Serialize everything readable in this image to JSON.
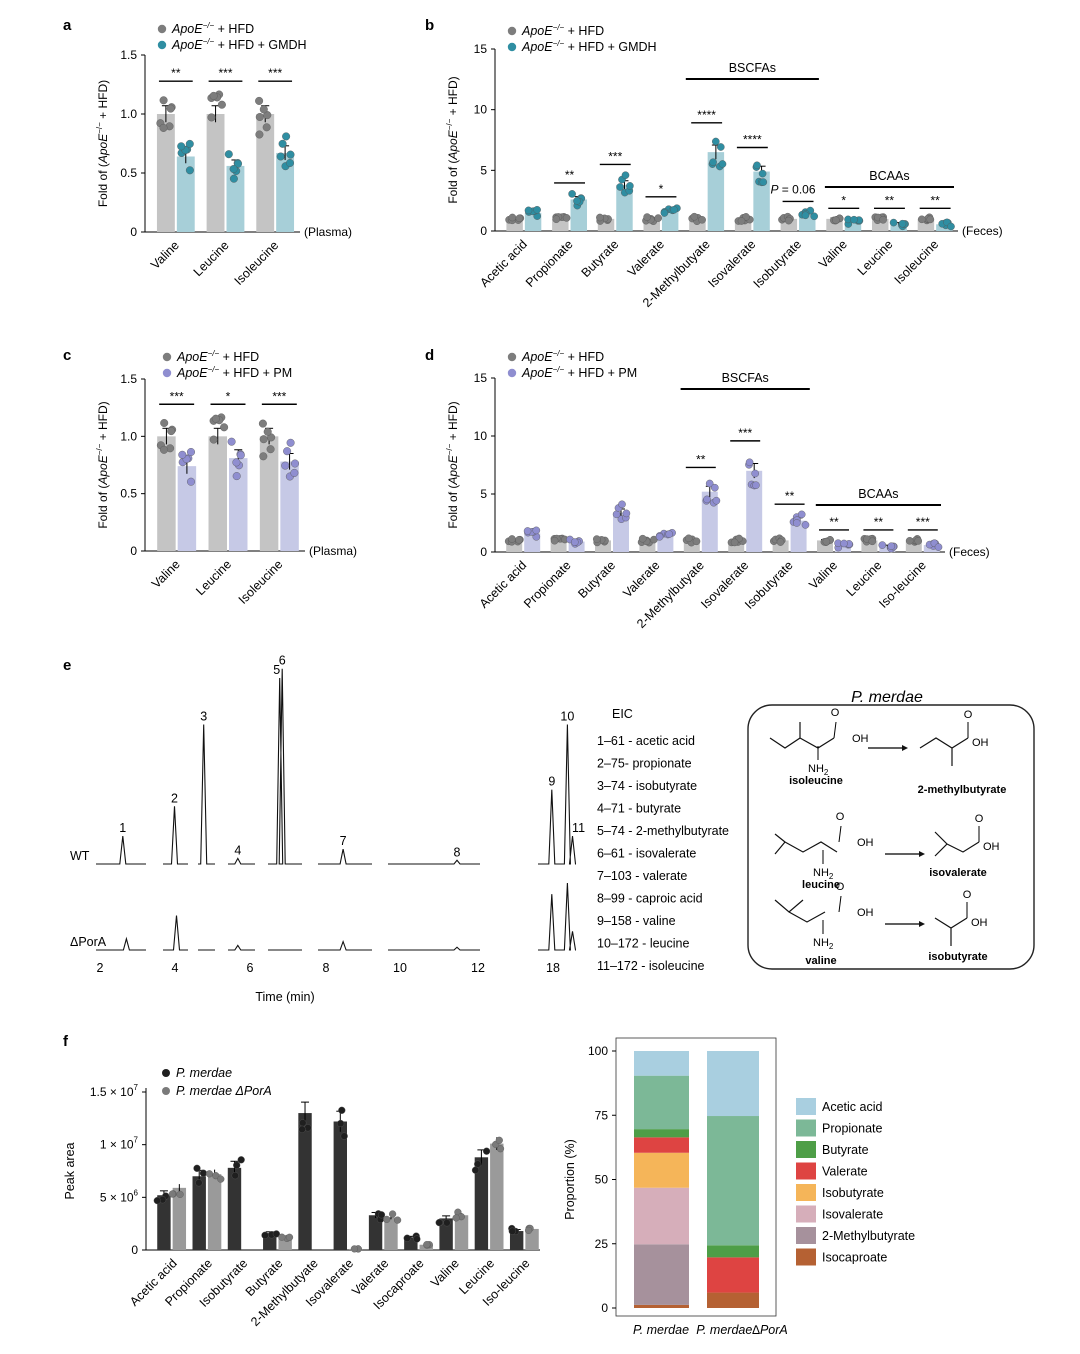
{
  "panel_labels": [
    "a",
    "b",
    "c",
    "d",
    "e",
    "f"
  ],
  "colors": {
    "grey_bar": "#c4c4c4",
    "grey_dot": "#7d7d7d",
    "teal_bar": "#a7cfd8",
    "teal_dot": "#2f8ea2",
    "purple_bar": "#c6c9e6",
    "purple_dot": "#8f8ed0",
    "light_dot": "#b8b8b8",
    "dark_bar": "#333333",
    "dark_dot": "#1f1f1f",
    "mid_bar": "#9a9a9a",
    "mid_dot": "#7a7a7a"
  },
  "chart_data": [
    {
      "id": "a",
      "type": "bar",
      "title": "",
      "legend": [
        "ApoE−/− + HFD",
        "ApoE−/− + HFD + GMDH"
      ],
      "xlabel": "",
      "ylabel": "Fold of (ApoE−/− + HFD)",
      "ylim": [
        0,
        1.5
      ],
      "yticks": [
        "0",
        "0.5",
        "1.0",
        "1.5"
      ],
      "categories": [
        "Valine",
        "Leucine",
        "Isoleucine"
      ],
      "note": "(Plasma)",
      "series": [
        {
          "name": "ApoE−/− + HFD",
          "values": [
            1.0,
            1.0,
            1.0
          ]
        },
        {
          "name": "ApoE−/− + HFD + GMDH",
          "values": [
            0.64,
            0.56,
            0.67
          ]
        }
      ],
      "annotations": [
        "**",
        "***",
        "***"
      ]
    },
    {
      "id": "b",
      "type": "bar",
      "title": "",
      "legend": [
        "ApoE−/− + HFD",
        "ApoE−/− + HFD + GMDH"
      ],
      "xlabel": "",
      "ylabel": "Fold of (ApoE−/− + HFD)",
      "ylim": [
        0,
        15
      ],
      "yticks": [
        "0",
        "5",
        "10",
        "15"
      ],
      "categories": [
        "Acetic acid",
        "Propionate",
        "Butyrate",
        "Valerate",
        "2-Methylbutyate",
        "Isovalerate",
        "Isobutyrate",
        "Valine",
        "Leucine",
        "Isoleucine"
      ],
      "note": "(Feces)",
      "series": [
        {
          "name": "ApoE−/− + HFD",
          "values": [
            1.0,
            1.0,
            1.0,
            1.0,
            1.0,
            1.0,
            1.0,
            1.0,
            1.0,
            1.0
          ]
        },
        {
          "name": "ApoE−/− + HFD + GMDH",
          "values": [
            1.5,
            2.6,
            3.8,
            1.7,
            6.5,
            4.9,
            1.4,
            0.75,
            0.6,
            0.55
          ]
        }
      ],
      "annotations": [
        "",
        "**",
        "***",
        "*",
        "****",
        "****",
        "P = 0.06",
        "*",
        "**",
        "**"
      ],
      "groups": [
        "BSCFAs",
        "BCAAs"
      ]
    },
    {
      "id": "c",
      "type": "bar",
      "title": "",
      "legend": [
        "ApoE−/− + HFD",
        "ApoE−/− + HFD + PM"
      ],
      "xlabel": "",
      "ylabel": "Fold of (ApoE−/− + HFD)",
      "ylim": [
        0,
        1.5
      ],
      "yticks": [
        "0",
        "0.5",
        "1.0",
        "1.5"
      ],
      "categories": [
        "Valine",
        "Leucine",
        "Isoleucine"
      ],
      "note": "(Plasma)",
      "series": [
        {
          "name": "ApoE−/− + HFD",
          "values": [
            1.0,
            1.0,
            1.0
          ]
        },
        {
          "name": "ApoE−/− + HFD + PM",
          "values": [
            0.74,
            0.81,
            0.78
          ]
        }
      ],
      "annotations": [
        "***",
        "*",
        "***"
      ]
    },
    {
      "id": "d",
      "type": "bar",
      "title": "",
      "legend": [
        "ApoE−/− + HFD",
        "ApoE−/− + HFD + PM"
      ],
      "xlabel": "",
      "ylabel": "Fold of (ApoE−/− + HFD)",
      "ylim": [
        0,
        15
      ],
      "yticks": [
        "0",
        "5",
        "10",
        "15"
      ],
      "categories": [
        "Acetic acid",
        "Propionate",
        "Butyrate",
        "Valerate",
        "2-Methylbutyate",
        "Isovalerate",
        "Isobutyrate",
        "Valine",
        "Leucine",
        "Iso-leucine"
      ],
      "note": "(Feces)",
      "series": [
        {
          "name": "ApoE−/− + HFD",
          "values": [
            1.0,
            1.0,
            1.0,
            1.0,
            1.0,
            1.0,
            1.0,
            1.0,
            1.0,
            1.0
          ]
        },
        {
          "name": "ApoE−/− + HFD + PM",
          "values": [
            1.6,
            0.9,
            3.4,
            1.5,
            5.2,
            7.0,
            2.7,
            0.55,
            0.5,
            0.6
          ]
        }
      ],
      "annotations": [
        "",
        "",
        "",
        "",
        "**",
        "***",
        "**",
        "**",
        "**",
        "***"
      ],
      "groups": [
        "BSCFAs",
        "BCAAs"
      ]
    },
    {
      "id": "e",
      "type": "line",
      "title": "",
      "xlabel": "Time (min)",
      "xticks": [
        "2",
        "4",
        "6",
        "8",
        "10",
        "12",
        "18"
      ],
      "traces": [
        "WT",
        "ΔPorA"
      ],
      "series": [
        {
          "name": "WT",
          "peaks": [
            {
              "label": "1",
              "x": 2.75,
              "height": 0.15
            },
            {
              "label": "2",
              "x": 3.95,
              "height": 0.31
            },
            {
              "label": "3",
              "x": 4.8,
              "height": 0.75
            },
            {
              "label": "4",
              "x": 5.6,
              "height": 0.03
            },
            {
              "label": "5",
              "x": 6.85,
              "height": 1.0
            },
            {
              "label": "6",
              "x": 6.97,
              "height": 1.05
            },
            {
              "label": "7",
              "x": 8.55,
              "height": 0.08
            },
            {
              "label": "8",
              "x": 11.4,
              "height": 0.02
            },
            {
              "label": "9",
              "x": 17.9,
              "height": 0.4
            },
            {
              "label": "10",
              "x": 18.35,
              "height": 0.75
            },
            {
              "label": "11",
              "x": 18.5,
              "height": 0.15
            }
          ]
        },
        {
          "name": "ΔPorA",
          "peaks": [
            {
              "label": "1",
              "x": 2.85,
              "height": 0.12
            },
            {
              "label": "2",
              "x": 4.05,
              "height": 0.37
            },
            {
              "label": "4",
              "x": 5.6,
              "height": 0.05
            },
            {
              "label": "7",
              "x": 8.55,
              "height": 0.09
            },
            {
              "label": "8",
              "x": 11.4,
              "height": 0.03
            },
            {
              "label": "9",
              "x": 17.9,
              "height": 0.6
            },
            {
              "label": "10",
              "x": 18.35,
              "height": 0.72
            },
            {
              "label": "11",
              "x": 18.5,
              "height": 0.2
            }
          ]
        }
      ],
      "eic_title": "EIC",
      "eic": [
        "1–61 - acetic acid",
        "2–75- propionate",
        "3–74 - isobutyrate",
        "4–71 - butyrate",
        "5–74 - 2-methylbutyrate",
        "6–61 - isovalerate",
        "7–103 - valerate",
        "8–99 - caproic acid",
        "9–158 - valine",
        "10–172 - leucine",
        "11–172 - isoleucine"
      ],
      "pathway": {
        "title": "P. merdae",
        "reactions": [
          {
            "substrate": "isoleucine",
            "product": "2-methylbutyrate"
          },
          {
            "substrate": "leucine",
            "product": "isovalerate"
          },
          {
            "substrate": "valine",
            "product": "isobutyrate"
          }
        ],
        "atoms": {
          "o": "O",
          "oh": "OH",
          "nh": "NH",
          "sub2": "2"
        }
      }
    },
    {
      "id": "f-left",
      "type": "bar",
      "title": "",
      "legend": [
        "P. merdae",
        "P. merdae ΔPorA"
      ],
      "xlabel": "",
      "ylabel": "Peak area",
      "ylim": [
        0,
        15000000
      ],
      "yticks": [
        "0",
        "5 × 10",
        "1 × 10",
        "1.5 × 10"
      ],
      "ytick_exponents": [
        "",
        "6",
        "7",
        "7"
      ],
      "categories": [
        "Acetic acid",
        "Propionate",
        "Isobutyrate",
        "Butyrate",
        "2-Methylbutyate",
        "Isovalerate",
        "Valerate",
        "Isocaproate",
        "Valine",
        "Leucine",
        "Iso-leucine"
      ],
      "series": [
        {
          "name": "P. merdae",
          "values": [
            5200000,
            7000000,
            7800000,
            1600000,
            13000000,
            12200000,
            3300000,
            1200000,
            3000000,
            8800000,
            1800000
          ]
        },
        {
          "name": "P. merdae ΔPorA",
          "values": [
            5900000,
            7200000,
            null,
            1200000,
            null,
            100000,
            3100000,
            500000,
            3300000,
            10100000,
            2000000
          ]
        }
      ]
    },
    {
      "id": "f-right",
      "type": "bar",
      "stacked": true,
      "title": "",
      "xlabel": "",
      "ylabel": "Proportion (%)",
      "ylim": [
        0,
        100
      ],
      "yticks": [
        "0",
        "25",
        "50",
        "75",
        "100"
      ],
      "categories": [
        "P. merdae",
        "P. merdae∆PorA"
      ],
      "series": [
        {
          "name": "Acetic acid",
          "color": "#a9cfe0",
          "values": [
            9.6,
            25.3
          ]
        },
        {
          "name": "Propionate",
          "color": "#7cb897",
          "values": [
            20.8,
            50.3
          ]
        },
        {
          "name": "Butyrate",
          "color": "#4e9e47",
          "values": [
            3.2,
            4.7
          ]
        },
        {
          "name": "Valerate",
          "color": "#de4442",
          "values": [
            6.0,
            13.7
          ]
        },
        {
          "name": "Isobutyrate",
          "color": "#f5b559",
          "values": [
            13.6,
            0
          ]
        },
        {
          "name": "Isovalerate",
          "color": "#d6aeba",
          "values": [
            22.0,
            0
          ]
        },
        {
          "name": "2-Methylbutyrate",
          "color": "#a6919c",
          "values": [
            23.6,
            0
          ]
        },
        {
          "name": "Isocaproate",
          "color": "#b56133",
          "values": [
            1.2,
            6.0
          ]
        }
      ]
    }
  ]
}
